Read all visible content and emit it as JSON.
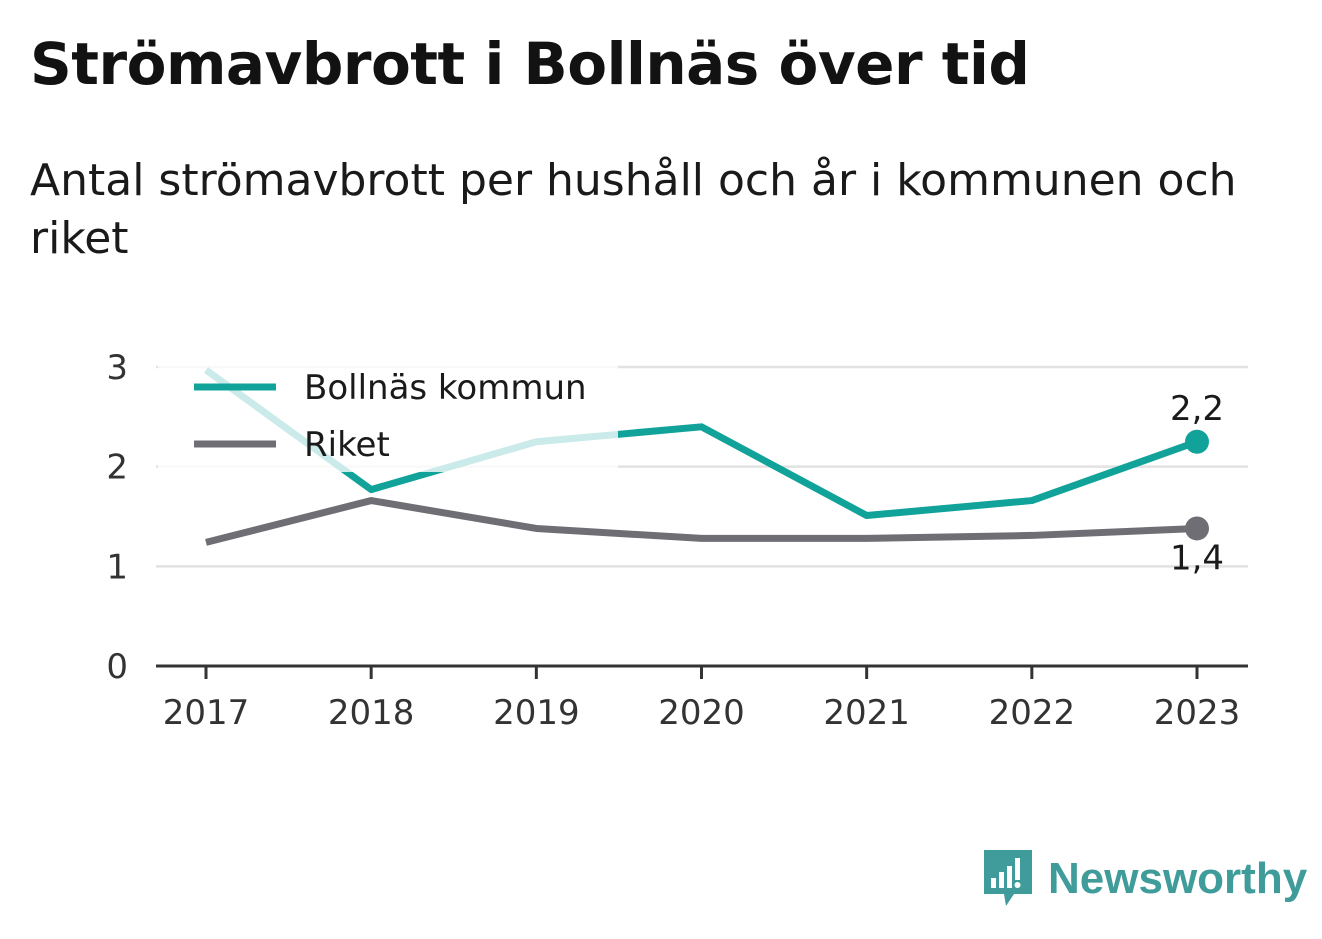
{
  "title": "Strömavbrott i Bollnäs över tid",
  "subtitle": "Antal strömavbrott per hushåll och år i kommunen och riket",
  "brand": {
    "name": "Newsworthy",
    "icon": "newsworthy-logo-icon",
    "color": "#3f9c9a"
  },
  "chart_data": {
    "type": "line",
    "x": [
      "2017",
      "2018",
      "2019",
      "2020",
      "2021",
      "2022",
      "2023"
    ],
    "yticks": [
      "0",
      "1",
      "2",
      "3"
    ],
    "ylim": [
      0,
      3
    ],
    "grid": true,
    "legend_position": "top-left",
    "series": [
      {
        "name": "Bollnäs kommun",
        "color": "#11a39a",
        "values": [
          2.97,
          1.77,
          2.25,
          2.4,
          1.51,
          1.66,
          2.25
        ],
        "end_label": "2,2"
      },
      {
        "name": "Riket",
        "color": "#6f6e75",
        "values": [
          1.24,
          1.66,
          1.38,
          1.28,
          1.28,
          1.31,
          1.38
        ],
        "end_label": "1,4"
      }
    ]
  }
}
